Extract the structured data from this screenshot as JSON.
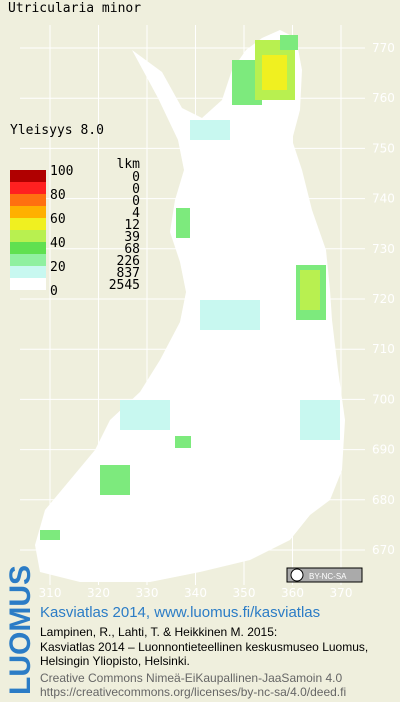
{
  "title": "Utricularia minor",
  "frequency": "Yleisyys 8.0",
  "legend": {
    "scale_labels": [
      "100",
      "80",
      "60",
      "40",
      "20",
      "0"
    ],
    "count_header": "lkm",
    "counts": [
      0,
      0,
      0,
      4,
      12,
      39,
      68,
      226,
      837,
      2545
    ]
  },
  "x_labels": [
    310,
    320,
    330,
    340,
    350,
    360,
    370
  ],
  "y_labels": [
    770,
    760,
    750,
    740,
    730,
    720,
    710,
    700,
    690,
    680,
    670
  ],
  "license_badge": "BY-NC-SA",
  "footer": {
    "brand": "LUOMUS",
    "headline": "Kasviatlas 2014, www.luomus.fi/kasviatlas",
    "citation": [
      "Lampinen, R., Lahti, T. & Heikkinen M. 2015:",
      "Kasviatlas 2014 – Luonnontieteellinen keskusmuseo Luomus,",
      "Helsingin Yliopisto, Helsinki."
    ],
    "license": [
      "Creative Commons Nimeä-EiKaupallinen-JaaSamoin 4.0",
      "https://creativecommons.org/licenses/by-nc-sa/4.0/deed.fi"
    ]
  }
}
